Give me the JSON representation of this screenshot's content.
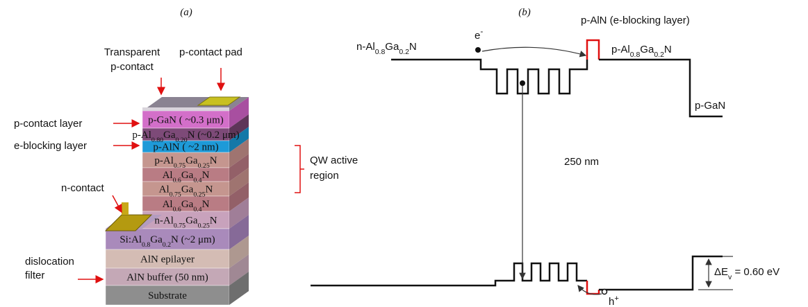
{
  "panel_a": {
    "tag": "(a)",
    "layers": [
      [
        "p-GaN ( ~0.3 μm)"
      ],
      [
        "p-Al",
        "0.80",
        "Ga",
        "0.20",
        "N (~0.2 μm)"
      ],
      [
        "p-AlN ( ~2 nm)"
      ],
      [
        "p-Al",
        "0.75",
        "Ga",
        "0.25",
        "N"
      ],
      [
        "Al",
        "0.6",
        "Ga",
        "0.4",
        "N"
      ],
      [
        "Al",
        "0.75",
        "Ga",
        "0.25",
        "N"
      ],
      [
        "Al",
        "0.6",
        "Ga",
        "0.4",
        "N"
      ],
      [
        "n-Al",
        "0.75",
        "Ga",
        "0.25",
        "N"
      ],
      [
        "Si:Al",
        "0.8",
        "Ga",
        "0.2",
        "N (~2 μm)"
      ],
      [
        "AlN epilayer"
      ],
      [
        "AlN buffer (50 nm)"
      ],
      [
        "Substrate"
      ]
    ],
    "callouts": {
      "transparent": [
        "Transparent",
        "p-contact"
      ],
      "pad": [
        "p-contact pad"
      ],
      "contact_layer": [
        "p-contact layer"
      ],
      "blocking": [
        "e-blocking layer"
      ],
      "n_contact": [
        "n-contact"
      ],
      "dislocation": [
        "dislocation",
        "filter"
      ],
      "qw": [
        "QW active",
        "region"
      ]
    }
  },
  "panel_b": {
    "tag": "(b)",
    "n_layer": [
      "n-Al",
      "0.8",
      "Ga",
      "0.2",
      "N"
    ],
    "electron": [
      "e",
      "-"
    ],
    "blocking": [
      "p-AlN (e-blocking layer)"
    ],
    "p_layer": [
      "p-Al",
      "0.8",
      "Ga",
      "0.2",
      "N"
    ],
    "p_gan": [
      "p-GaN"
    ],
    "wavelength": [
      "250 nm"
    ],
    "hole": [
      "h",
      "+"
    ],
    "offset": [
      "ΔE",
      "v",
      " = 0.60 eV"
    ]
  }
}
